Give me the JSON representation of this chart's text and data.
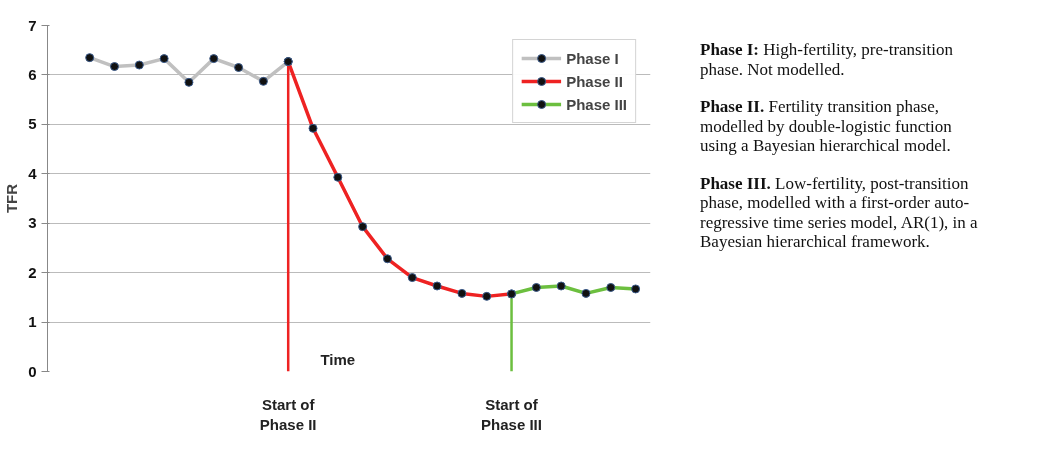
{
  "chart_data": {
    "type": "line",
    "ylabel": "TFR",
    "xlabel": "Time",
    "categories": [
      null,
      null,
      null,
      null,
      null,
      null,
      null,
      null,
      "Start of Phase II",
      null,
      null,
      null,
      null,
      null,
      null,
      null,
      null,
      "Start of Phase III",
      null,
      null,
      null,
      null,
      null
    ],
    "ylim": [
      0,
      7
    ],
    "yticks": [
      0,
      1,
      2,
      3,
      4,
      5,
      6,
      7
    ],
    "grid": "y",
    "legend": "top right",
    "marker": "circle",
    "line_style": "solid",
    "series": [
      {
        "name": "Phase I",
        "color": "#c0c0c0",
        "values": [
          6.35,
          6.17,
          6.2,
          6.33,
          5.85,
          6.33,
          6.15,
          5.87,
          6.27,
          null,
          null,
          null,
          null,
          null,
          null,
          null,
          null,
          null,
          null,
          null,
          null,
          null,
          null
        ]
      },
      {
        "name": "Phase II",
        "color": "#ee2222",
        "values": [
          null,
          null,
          null,
          null,
          null,
          null,
          null,
          null,
          6.27,
          4.92,
          3.93,
          2.93,
          2.28,
          1.9,
          1.73,
          1.58,
          1.52,
          1.57,
          null,
          null,
          null,
          null,
          null
        ]
      },
      {
        "name": "Phase III",
        "color": "#6cbf3f",
        "values": [
          null,
          null,
          null,
          null,
          null,
          null,
          null,
          null,
          null,
          null,
          null,
          null,
          null,
          null,
          null,
          null,
          null,
          1.57,
          1.7,
          1.73,
          1.58,
          1.7,
          1.67
        ]
      }
    ],
    "ref_lines": [
      {
        "axis": "x",
        "value": "Start of Phase II",
        "color": "#ee2222"
      },
      {
        "axis": "x",
        "value": "Start of Phase III",
        "color": "#6cbf3f"
      }
    ],
    "annotations": [
      "Phase I: High-fertility, pre-transition phase. Not modelled.",
      "Phase II. Fertility transition phase, modelled by double-logistic function using a Bayesian hierarchical model.",
      "Phase III. Low-fertility, post-transition phase, modelled with a first-order auto-regressive time series model, AR(1), in a Bayesian hierarchical framework."
    ]
  }
}
